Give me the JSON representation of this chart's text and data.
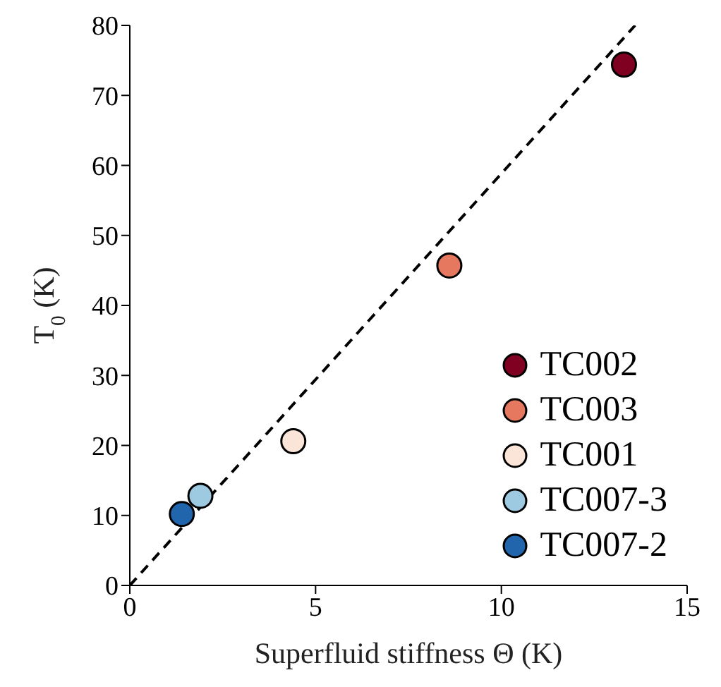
{
  "chart_data": {
    "type": "scatter",
    "xlabel": "Superfluid stiffness Θ (K)",
    "ylabel": "T$_{0}$ (K)",
    "xlim": [
      0,
      15
    ],
    "xticks": [
      0,
      5,
      10,
      15
    ],
    "ylim": [
      0,
      80
    ],
    "yticks": [
      0,
      10,
      20,
      30,
      40,
      50,
      60,
      70,
      80
    ],
    "legend": "bottom right",
    "marker": "circle",
    "series": [
      {
        "name": "TC002",
        "color": "#7f0020",
        "x": [
          13.3
        ],
        "values": [
          74.4
        ]
      },
      {
        "name": "TC003",
        "color": "#e5785f",
        "x": [
          8.6
        ],
        "values": [
          45.7
        ]
      },
      {
        "name": "TC001",
        "color": "#fbe5d8",
        "x": [
          4.4
        ],
        "values": [
          20.6
        ]
      },
      {
        "name": "TC007-3",
        "color": "#9dcae1",
        "x": [
          1.9
        ],
        "values": [
          12.8
        ]
      },
      {
        "name": "TC007-2",
        "color": "#2166ac",
        "x": [
          1.4
        ],
        "values": [
          10.2
        ]
      },
      {
        "type": "line",
        "color": "#000000",
        "line_style": "dashed",
        "marker": "none",
        "x": [
          0,
          13.6
        ],
        "values": [
          0,
          80
        ]
      }
    ]
  }
}
